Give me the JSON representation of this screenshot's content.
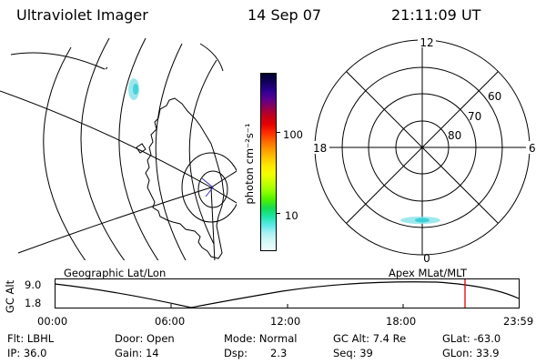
{
  "header": {
    "instrument": "Ultraviolet Imager",
    "date": "14 Sep 07",
    "time": "21:11:09 UT"
  },
  "geo_panel": {
    "label": "Geographic Lat/Lon",
    "boundary_color": "#000000"
  },
  "colorbar": {
    "unit_label": "photon cm⁻²s⁻¹",
    "ticks": [
      "100",
      "10"
    ],
    "colors_top_to_bottom": [
      "#000030",
      "#12005c",
      "#2a0090",
      "#5a0090",
      "#8e0057",
      "#c0001c",
      "#e50000",
      "#ff2a00",
      "#ff6600",
      "#ff9900",
      "#ffc400",
      "#ffea00",
      "#f2ff00",
      "#c5ff00",
      "#8eff00",
      "#4cf000",
      "#14dc52",
      "#1ee6a8",
      "#5ae9e6",
      "#aef1f3",
      "#d6f8f8",
      "#eefcfc"
    ]
  },
  "polar_panel": {
    "label": "Apex MLat/MLT",
    "mlt_labels": {
      "top": "12",
      "right": "6",
      "bottom": "0",
      "left": "18"
    },
    "lat_labels": [
      "60",
      "70",
      "80"
    ]
  },
  "altitude_plot": {
    "ylabel": "GC Alt",
    "yticks": [
      "9.0",
      "1.8"
    ],
    "xticks": [
      "00:00",
      "06:00",
      "12:00",
      "18:00",
      "23:59"
    ],
    "marker_color": "#e00000"
  },
  "info": {
    "filter": "Flt: LBHL",
    "ip": "IP: 36.0",
    "door": "Door: Open",
    "gain": "Gain: 14",
    "mode": "Mode: Normal",
    "dsp_label": "Dsp:",
    "dsp_value": "2.3",
    "gc_alt": "GC Alt: 7.4 Re",
    "seq": "Seq: 39",
    "glat": "GLat: -63.0",
    "glon": "GLon: 33.9"
  }
}
